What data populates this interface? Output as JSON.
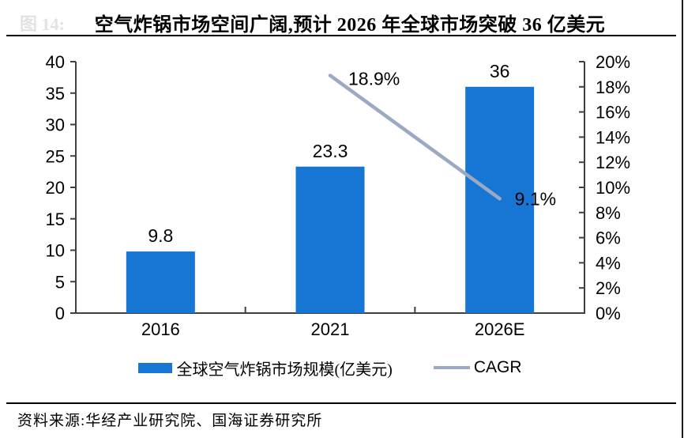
{
  "page": {
    "figure_tag": "图 14:",
    "title": "空气炸锅市场空间广阔,预计 2026 年全球市场突破 36 亿美元",
    "source": "资料来源:华经产业研究院、国海证券研究所"
  },
  "chart_data": {
    "type": "bar",
    "title": "空气炸锅市场空间广阔,预计 2026 年全球市场突破 36 亿美元",
    "categories": [
      "2016",
      "2021",
      "2026E"
    ],
    "series": [
      {
        "name": "全球空气炸锅市场规模(亿美元)",
        "type": "bar",
        "axis": "left",
        "values": [
          9.8,
          23.3,
          36
        ],
        "data_labels": [
          "9.8",
          "23.3",
          "36"
        ],
        "color": "#1776d4"
      },
      {
        "name": "CAGR",
        "type": "line",
        "axis": "right",
        "values": [
          null,
          18.9,
          9.1
        ],
        "data_labels": [
          null,
          "18.9%",
          "9.1%"
        ],
        "color": "#9aa9c4"
      }
    ],
    "left_axis": {
      "min": 0,
      "max": 40,
      "step": 5
    },
    "right_axis": {
      "min": 0,
      "max": 20,
      "step": 2,
      "suffix": "%"
    },
    "legend_position": "bottom",
    "grid": false,
    "axis_color": "#3f3f3f",
    "text_color": "#000000"
  }
}
